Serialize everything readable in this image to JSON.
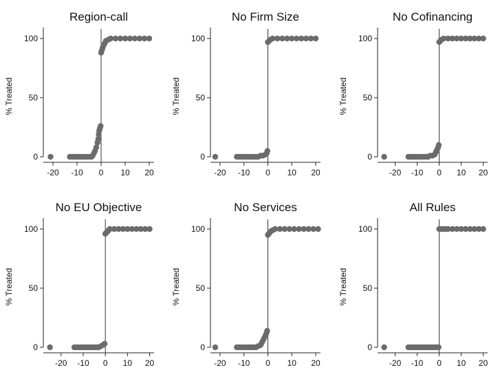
{
  "chart_data": [
    {
      "type": "scatter",
      "title": "Region-call",
      "ylabel": "% Treated",
      "xlim": [
        -24,
        22
      ],
      "ylim": [
        0,
        100
      ],
      "xticks": [
        -20,
        -10,
        0,
        10,
        20
      ],
      "yticks": [
        0,
        50,
        100
      ],
      "cutoff": 0,
      "marker_color": "#6b6b6b",
      "points": [
        {
          "x": -21,
          "y": 0
        },
        {
          "x": -13,
          "y": 0
        },
        {
          "x": -12,
          "y": 0
        },
        {
          "x": -11,
          "y": 0
        },
        {
          "x": -10,
          "y": 0
        },
        {
          "x": -9,
          "y": 0
        },
        {
          "x": -8,
          "y": 0
        },
        {
          "x": -7,
          "y": 0
        },
        {
          "x": -6,
          "y": 0
        },
        {
          "x": -5,
          "y": 0
        },
        {
          "x": -4,
          "y": 0
        },
        {
          "x": -3.5,
          "y": 1
        },
        {
          "x": -3,
          "y": 3
        },
        {
          "x": -2.5,
          "y": 5
        },
        {
          "x": -2,
          "y": 8
        },
        {
          "x": -1.5,
          "y": 12
        },
        {
          "x": -1.2,
          "y": 15
        },
        {
          "x": -1,
          "y": 19
        },
        {
          "x": -0.8,
          "y": 22
        },
        {
          "x": -0.5,
          "y": 24
        },
        {
          "x": -0.2,
          "y": 26
        },
        {
          "x": 0,
          "y": 88
        },
        {
          "x": 0.3,
          "y": 90
        },
        {
          "x": 0.6,
          "y": 92
        },
        {
          "x": 1,
          "y": 94
        },
        {
          "x": 1.5,
          "y": 96
        },
        {
          "x": 2,
          "y": 98
        },
        {
          "x": 3,
          "y": 99
        },
        {
          "x": 4,
          "y": 100
        },
        {
          "x": 6,
          "y": 100
        },
        {
          "x": 8,
          "y": 100
        },
        {
          "x": 10,
          "y": 100
        },
        {
          "x": 12,
          "y": 100
        },
        {
          "x": 14,
          "y": 100
        },
        {
          "x": 16,
          "y": 100
        },
        {
          "x": 18,
          "y": 100
        },
        {
          "x": 20,
          "y": 100
        }
      ]
    },
    {
      "type": "scatter",
      "title": "No Firm Size",
      "ylabel": "% Treated",
      "xlim": [
        -24,
        22
      ],
      "ylim": [
        0,
        100
      ],
      "xticks": [
        -20,
        -10,
        0,
        10,
        20
      ],
      "yticks": [
        0,
        50,
        100
      ],
      "cutoff": 0,
      "marker_color": "#6b6b6b",
      "points": [
        {
          "x": -22,
          "y": 0
        },
        {
          "x": -13,
          "y": 0
        },
        {
          "x": -12,
          "y": 0
        },
        {
          "x": -11,
          "y": 0
        },
        {
          "x": -10,
          "y": 0
        },
        {
          "x": -9,
          "y": 0
        },
        {
          "x": -8,
          "y": 0
        },
        {
          "x": -7,
          "y": 0
        },
        {
          "x": -6,
          "y": 0
        },
        {
          "x": -5,
          "y": 0
        },
        {
          "x": -4,
          "y": 0
        },
        {
          "x": -3,
          "y": 1
        },
        {
          "x": -2,
          "y": 1
        },
        {
          "x": -1,
          "y": 2
        },
        {
          "x": -0.5,
          "y": 3
        },
        {
          "x": -0.2,
          "y": 5
        },
        {
          "x": 0,
          "y": 97
        },
        {
          "x": 0.5,
          "y": 98
        },
        {
          "x": 1,
          "y": 99
        },
        {
          "x": 2,
          "y": 100
        },
        {
          "x": 4,
          "y": 100
        },
        {
          "x": 6,
          "y": 100
        },
        {
          "x": 8,
          "y": 100
        },
        {
          "x": 10,
          "y": 100
        },
        {
          "x": 12,
          "y": 100
        },
        {
          "x": 14,
          "y": 100
        },
        {
          "x": 16,
          "y": 100
        },
        {
          "x": 18,
          "y": 100
        },
        {
          "x": 20,
          "y": 100
        }
      ]
    },
    {
      "type": "scatter",
      "title": "No Cofinancing",
      "ylabel": "% Treated",
      "xlim": [
        -28,
        22
      ],
      "ylim": [
        0,
        100
      ],
      "xticks": [
        -20,
        -10,
        0,
        10,
        20
      ],
      "yticks": [
        0,
        50,
        100
      ],
      "cutoff": 0,
      "marker_color": "#6b6b6b",
      "points": [
        {
          "x": -25,
          "y": 0
        },
        {
          "x": -14,
          "y": 0
        },
        {
          "x": -13,
          "y": 0
        },
        {
          "x": -12,
          "y": 0
        },
        {
          "x": -11,
          "y": 0
        },
        {
          "x": -10,
          "y": 0
        },
        {
          "x": -9,
          "y": 0
        },
        {
          "x": -8,
          "y": 0
        },
        {
          "x": -7,
          "y": 0
        },
        {
          "x": -6,
          "y": 0
        },
        {
          "x": -5,
          "y": 0
        },
        {
          "x": -4,
          "y": 1
        },
        {
          "x": -3,
          "y": 1
        },
        {
          "x": -2,
          "y": 2
        },
        {
          "x": -1.5,
          "y": 4
        },
        {
          "x": -1,
          "y": 6
        },
        {
          "x": -0.5,
          "y": 8
        },
        {
          "x": -0.2,
          "y": 10
        },
        {
          "x": 0,
          "y": 97
        },
        {
          "x": 0.5,
          "y": 98
        },
        {
          "x": 1,
          "y": 99
        },
        {
          "x": 2,
          "y": 100
        },
        {
          "x": 4,
          "y": 100
        },
        {
          "x": 6,
          "y": 100
        },
        {
          "x": 8,
          "y": 100
        },
        {
          "x": 10,
          "y": 100
        },
        {
          "x": 12,
          "y": 100
        },
        {
          "x": 14,
          "y": 100
        },
        {
          "x": 16,
          "y": 100
        },
        {
          "x": 18,
          "y": 100
        },
        {
          "x": 20,
          "y": 100
        }
      ]
    },
    {
      "type": "scatter",
      "title": "No EU Objective",
      "ylabel": "% Treated",
      "xlim": [
        -28,
        22
      ],
      "ylim": [
        0,
        100
      ],
      "xticks": [
        -20,
        -10,
        0,
        10,
        20
      ],
      "yticks": [
        0,
        50,
        100
      ],
      "cutoff": 0,
      "marker_color": "#6b6b6b",
      "points": [
        {
          "x": -25,
          "y": 0
        },
        {
          "x": -14,
          "y": 0
        },
        {
          "x": -13,
          "y": 0
        },
        {
          "x": -12,
          "y": 0
        },
        {
          "x": -11,
          "y": 0
        },
        {
          "x": -10,
          "y": 0
        },
        {
          "x": -9,
          "y": 0
        },
        {
          "x": -8,
          "y": 0
        },
        {
          "x": -7,
          "y": 0
        },
        {
          "x": -6,
          "y": 0
        },
        {
          "x": -5,
          "y": 0
        },
        {
          "x": -4,
          "y": 0
        },
        {
          "x": -3,
          "y": 0
        },
        {
          "x": -2,
          "y": 1
        },
        {
          "x": -1,
          "y": 2
        },
        {
          "x": -0.3,
          "y": 3
        },
        {
          "x": 0,
          "y": 96
        },
        {
          "x": 0.5,
          "y": 97
        },
        {
          "x": 1,
          "y": 98
        },
        {
          "x": 1.5,
          "y": 99
        },
        {
          "x": 2,
          "y": 100
        },
        {
          "x": 4,
          "y": 100
        },
        {
          "x": 6,
          "y": 100
        },
        {
          "x": 8,
          "y": 100
        },
        {
          "x": 10,
          "y": 100
        },
        {
          "x": 12,
          "y": 100
        },
        {
          "x": 14,
          "y": 100
        },
        {
          "x": 16,
          "y": 100
        },
        {
          "x": 18,
          "y": 100
        },
        {
          "x": 20,
          "y": 100
        }
      ]
    },
    {
      "type": "scatter",
      "title": "No Services",
      "ylabel": "% Treated",
      "xlim": [
        -24,
        22
      ],
      "ylim": [
        0,
        100
      ],
      "xticks": [
        -20,
        -10,
        0,
        10,
        20
      ],
      "yticks": [
        0,
        50,
        100
      ],
      "cutoff": 0,
      "marker_color": "#6b6b6b",
      "points": [
        {
          "x": -22,
          "y": 0
        },
        {
          "x": -13,
          "y": 0
        },
        {
          "x": -12,
          "y": 0
        },
        {
          "x": -11,
          "y": 0
        },
        {
          "x": -10,
          "y": 0
        },
        {
          "x": -9,
          "y": 0
        },
        {
          "x": -8,
          "y": 0
        },
        {
          "x": -7,
          "y": 0
        },
        {
          "x": -6,
          "y": 0
        },
        {
          "x": -5,
          "y": 0
        },
        {
          "x": -4,
          "y": 1
        },
        {
          "x": -3,
          "y": 2
        },
        {
          "x": -2.5,
          "y": 4
        },
        {
          "x": -2,
          "y": 6
        },
        {
          "x": -1.5,
          "y": 8
        },
        {
          "x": -1,
          "y": 10
        },
        {
          "x": -0.6,
          "y": 12
        },
        {
          "x": -0.3,
          "y": 14
        },
        {
          "x": 0,
          "y": 95
        },
        {
          "x": 0.4,
          "y": 96
        },
        {
          "x": 0.8,
          "y": 97
        },
        {
          "x": 1.2,
          "y": 98
        },
        {
          "x": 2,
          "y": 99
        },
        {
          "x": 3,
          "y": 100
        },
        {
          "x": 5,
          "y": 100
        },
        {
          "x": 7,
          "y": 100
        },
        {
          "x": 9,
          "y": 100
        },
        {
          "x": 11,
          "y": 100
        },
        {
          "x": 13,
          "y": 100
        },
        {
          "x": 15,
          "y": 100
        },
        {
          "x": 17,
          "y": 100
        },
        {
          "x": 19,
          "y": 100
        },
        {
          "x": 21,
          "y": 100
        }
      ]
    },
    {
      "type": "scatter",
      "title": "All Rules",
      "ylabel": "% Treated",
      "xlim": [
        -28,
        22
      ],
      "ylim": [
        0,
        100
      ],
      "xticks": [
        -20,
        -10,
        0,
        10,
        20
      ],
      "yticks": [
        0,
        50,
        100
      ],
      "cutoff": 0,
      "marker_color": "#6b6b6b",
      "points": [
        {
          "x": -25,
          "y": 0
        },
        {
          "x": -14,
          "y": 0
        },
        {
          "x": -13,
          "y": 0
        },
        {
          "x": -12,
          "y": 0
        },
        {
          "x": -11,
          "y": 0
        },
        {
          "x": -10,
          "y": 0
        },
        {
          "x": -9,
          "y": 0
        },
        {
          "x": -8,
          "y": 0
        },
        {
          "x": -7,
          "y": 0
        },
        {
          "x": -6,
          "y": 0
        },
        {
          "x": -5,
          "y": 0
        },
        {
          "x": -4,
          "y": 0
        },
        {
          "x": -3,
          "y": 0
        },
        {
          "x": -2,
          "y": 0
        },
        {
          "x": -1,
          "y": 0
        },
        {
          "x": -0.3,
          "y": 0
        },
        {
          "x": 0,
          "y": 100
        },
        {
          "x": 1,
          "y": 100
        },
        {
          "x": 2,
          "y": 100
        },
        {
          "x": 3,
          "y": 100
        },
        {
          "x": 4,
          "y": 100
        },
        {
          "x": 6,
          "y": 100
        },
        {
          "x": 8,
          "y": 100
        },
        {
          "x": 10,
          "y": 100
        },
        {
          "x": 12,
          "y": 100
        },
        {
          "x": 14,
          "y": 100
        },
        {
          "x": 16,
          "y": 100
        },
        {
          "x": 18,
          "y": 100
        },
        {
          "x": 20,
          "y": 100
        }
      ]
    }
  ]
}
